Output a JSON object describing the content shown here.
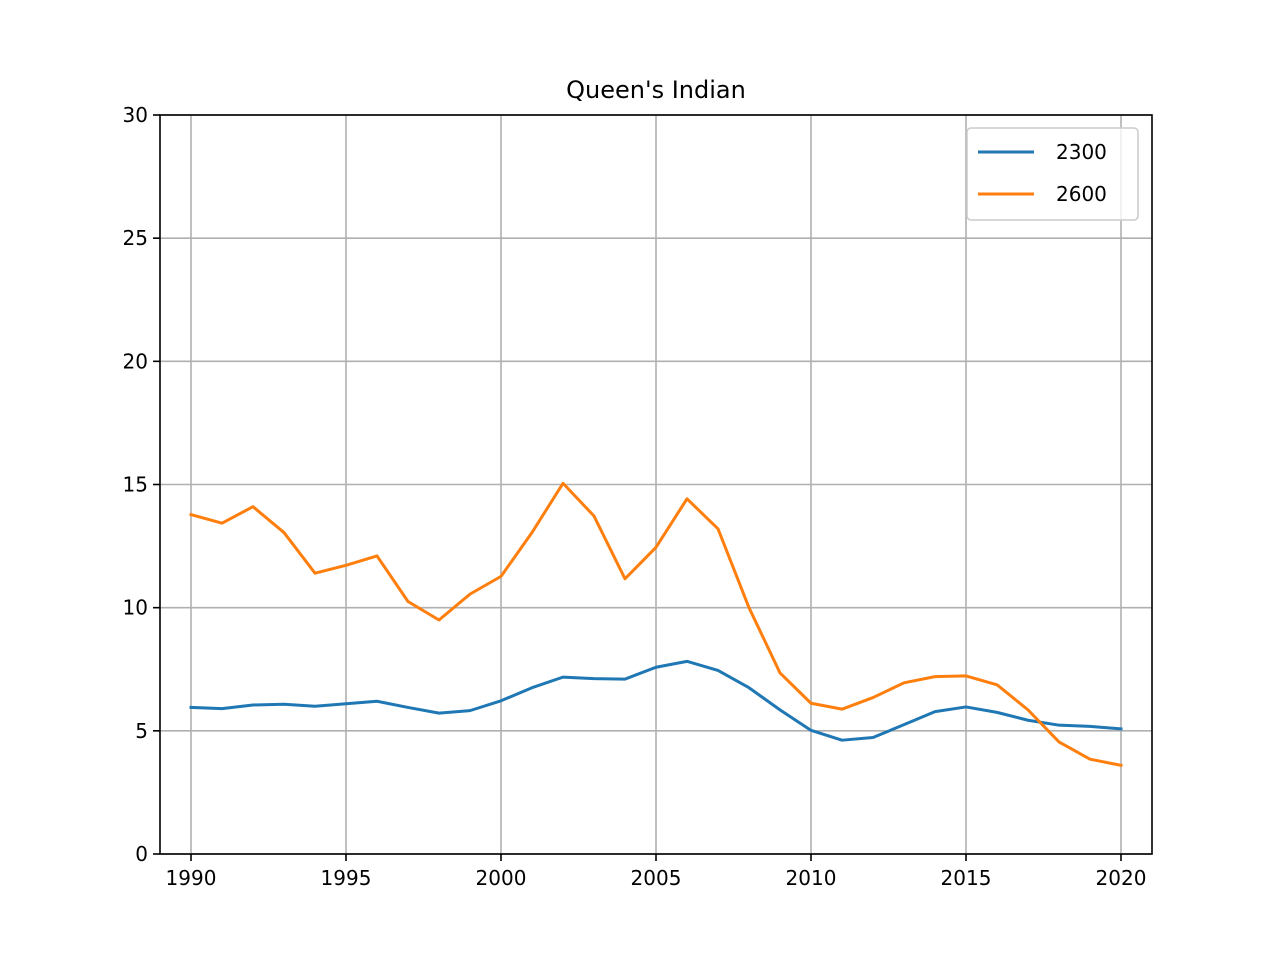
{
  "chart_data": {
    "type": "line",
    "title": "Queen's Indian",
    "xlabel": "",
    "ylabel": "",
    "xlim": [
      1989,
      2021
    ],
    "ylim": [
      0,
      30
    ],
    "x_ticks": [
      "1990",
      "1995",
      "2000",
      "2005",
      "2010",
      "2015",
      "2020"
    ],
    "y_ticks": [
      "0",
      "5",
      "10",
      "15",
      "20",
      "25",
      "30"
    ],
    "grid": true,
    "legend_position": "top-right",
    "x": [
      1990,
      1991,
      1992,
      1993,
      1994,
      1995,
      1996,
      1997,
      1998,
      1999,
      2000,
      2001,
      2002,
      2003,
      2004,
      2005,
      2006,
      2007,
      2008,
      2009,
      2010,
      2011,
      2012,
      2013,
      2014,
      2015,
      2016,
      2017,
      2018,
      2019,
      2020
    ],
    "series": [
      {
        "name": "2300",
        "color": "#1f77b4",
        "values": [
          5.95,
          5.9,
          6.05,
          6.08,
          6.0,
          6.1,
          6.2,
          5.95,
          5.72,
          5.82,
          6.22,
          6.75,
          7.18,
          7.12,
          7.1,
          7.58,
          7.82,
          7.45,
          6.75,
          5.85,
          5.02,
          4.62,
          4.73,
          5.25,
          5.78,
          5.97,
          5.75,
          5.43,
          5.23,
          5.18,
          5.08
        ]
      },
      {
        "name": "2600",
        "color": "#ff7f0e",
        "values": [
          13.78,
          13.43,
          14.1,
          13.05,
          11.4,
          11.72,
          12.1,
          10.25,
          9.5,
          10.55,
          11.27,
          13.05,
          15.05,
          13.72,
          11.17,
          12.45,
          14.42,
          13.2,
          10.0,
          7.35,
          6.12,
          5.88,
          6.35,
          6.95,
          7.2,
          7.23,
          6.87,
          5.85,
          4.55,
          3.85,
          3.6
        ]
      }
    ]
  }
}
